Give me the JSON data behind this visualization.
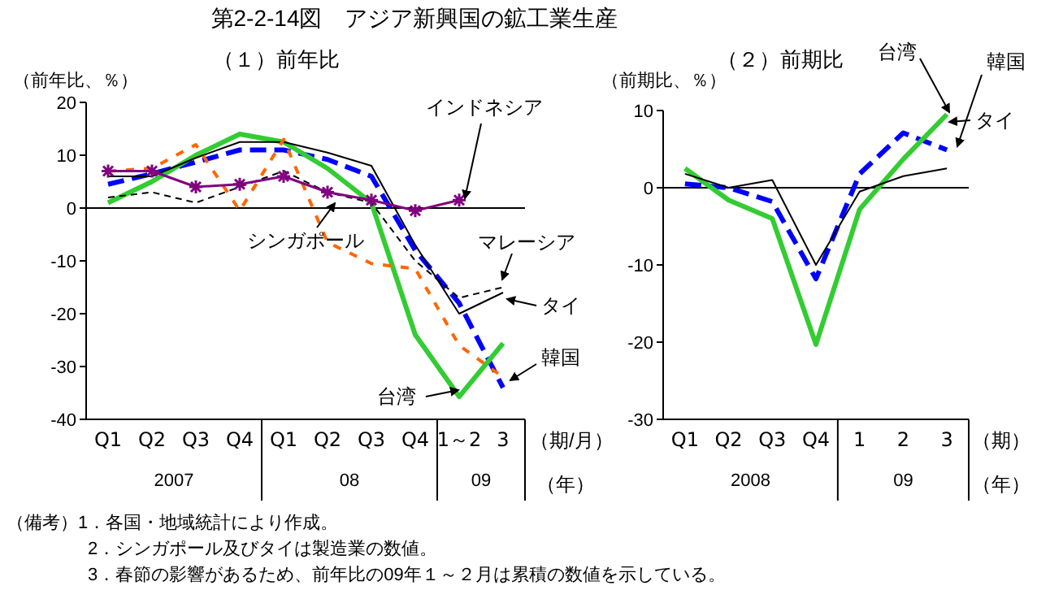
{
  "chart_data": [
    {
      "type": "line",
      "title": "第2-2-14図　アジア新興国の鉱工業生産",
      "subtitle": "（１）前年比",
      "ylabel": "（前年比、％）",
      "xlabel": "（期/月）",
      "categories": [
        "Q1",
        "Q2",
        "Q3",
        "Q4",
        "Q1",
        "Q2",
        "Q3",
        "Q4",
        "1～2",
        "3"
      ],
      "series": [
        {
          "name": "韓国",
          "color": "#0000ff",
          "line_style": "dashed",
          "values": [
            4.5,
            6.5,
            8.7,
            11,
            11,
            9.2,
            6,
            -8,
            -18,
            -34
          ]
        },
        {
          "name": "台湾",
          "color": "#33cc33",
          "line_style": "solid",
          "values": [
            1,
            5,
            10,
            14,
            12.5,
            7.5,
            1,
            -24,
            -35.7,
            -25.6
          ]
        },
        {
          "name": "タイ",
          "color": "#000000",
          "line_style": "solid",
          "values": [
            6,
            6,
            9.5,
            12.5,
            12.5,
            10.5,
            8,
            -7,
            -20,
            -16
          ]
        },
        {
          "name": "マレーシア",
          "color": "#000000",
          "line_style": "dashed",
          "values": [
            2,
            3,
            1,
            4,
            7,
            3,
            1,
            -10,
            -17,
            -15
          ]
        },
        {
          "name": "シンガポール",
          "color": "#ff6600",
          "line_style": "dashed",
          "values": [
            7,
            7.5,
            12,
            -0.5,
            13,
            -6.5,
            -10.5,
            -11.5,
            -26,
            -32
          ]
        },
        {
          "name": "インドネシア",
          "color": "#800080",
          "line_style": "solid",
          "marker": "cross",
          "values": [
            7,
            7,
            4,
            4.5,
            6,
            3,
            1.5,
            -0.5,
            1.5,
            null
          ]
        }
      ],
      "ylim": [
        -40,
        20
      ],
      "yticks": [
        -40,
        -30,
        -20,
        -10,
        0,
        10,
        20
      ],
      "grid": false,
      "ref_lines": [
        {
          "axis": "y",
          "value": 0,
          "color": "#000000"
        }
      ],
      "annotations": [
        "2007",
        "08",
        "09",
        "（年）",
        "（備考）1．各国・地域統計により作成。",
        "2．シンガポール及びタイは製造業の数値。",
        "3．春節の影響があるため、前年比の09年１～２月は累積の数値を示している。"
      ]
    },
    {
      "type": "line",
      "subtitle": "（２）前期比",
      "ylabel": "（前期比、％）",
      "xlabel": "（期）",
      "categories": [
        "Q1",
        "Q2",
        "Q3",
        "Q4",
        "1",
        "2",
        "3"
      ],
      "series": [
        {
          "name": "韓国",
          "color": "#0000ff",
          "line_style": "dashed",
          "values": [
            0.5,
            0,
            -1.8,
            -11.8,
            1.8,
            7.1,
            4.9
          ]
        },
        {
          "name": "台湾",
          "color": "#33cc33",
          "line_style": "solid",
          "values": [
            2.5,
            -1.6,
            -4,
            -20.3,
            -2.8,
            3.7,
            9.5
          ]
        },
        {
          "name": "タイ",
          "color": "#000000",
          "line_style": "solid",
          "values": [
            1.8,
            0,
            1,
            -10,
            -0.5,
            1.5,
            2.5
          ]
        }
      ],
      "ylim": [
        -30,
        10
      ],
      "yticks": [
        -30,
        -20,
        -10,
        0,
        10
      ],
      "grid": false,
      "ref_lines": [
        {
          "axis": "y",
          "value": 0,
          "color": "#000000"
        }
      ],
      "annotations": [
        "2008",
        "09",
        "（年）"
      ]
    }
  ]
}
